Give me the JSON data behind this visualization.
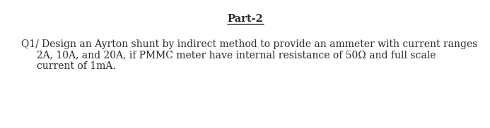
{
  "title": "Part-2",
  "body_line1": "Q1/ Design an Ayrton shunt by indirect method to provide an ammeter with current ranges",
  "body_line2": "     2A, 10A, and 20A, if PMMC meter have internal resistance of 50Ω and full scale",
  "body_line3": "     current of 1mA.",
  "background_color": "#ffffff",
  "text_color": "#2a2a2a",
  "font_family": "serif",
  "title_fontsize": 10.5,
  "body_fontsize": 10.0
}
